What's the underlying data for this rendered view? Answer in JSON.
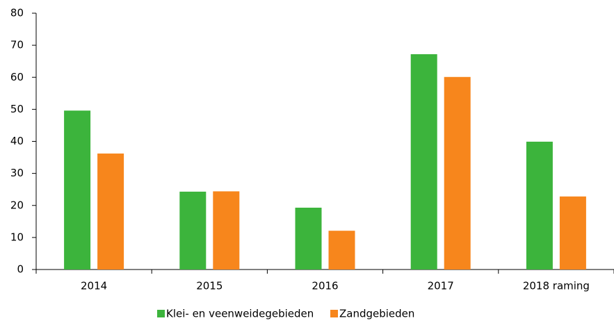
{
  "chart_data": {
    "type": "bar",
    "categories": [
      "2014",
      "2015",
      "2016",
      "2017",
      "2018 raming"
    ],
    "series": [
      {
        "name": "Klei- en veenweidegebieden",
        "color": "#3cb43c",
        "values": [
          49.6,
          24.3,
          19.3,
          67.2,
          39.9
        ]
      },
      {
        "name": "Zandgebieden",
        "color": "#f7861c",
        "values": [
          36.2,
          24.4,
          12.1,
          60.1,
          22.8
        ]
      }
    ],
    "ylim": [
      0,
      80
    ],
    "yticks": [
      0,
      10,
      20,
      30,
      40,
      50,
      60,
      70,
      80
    ],
    "grid": false,
    "legend": "bottom"
  }
}
